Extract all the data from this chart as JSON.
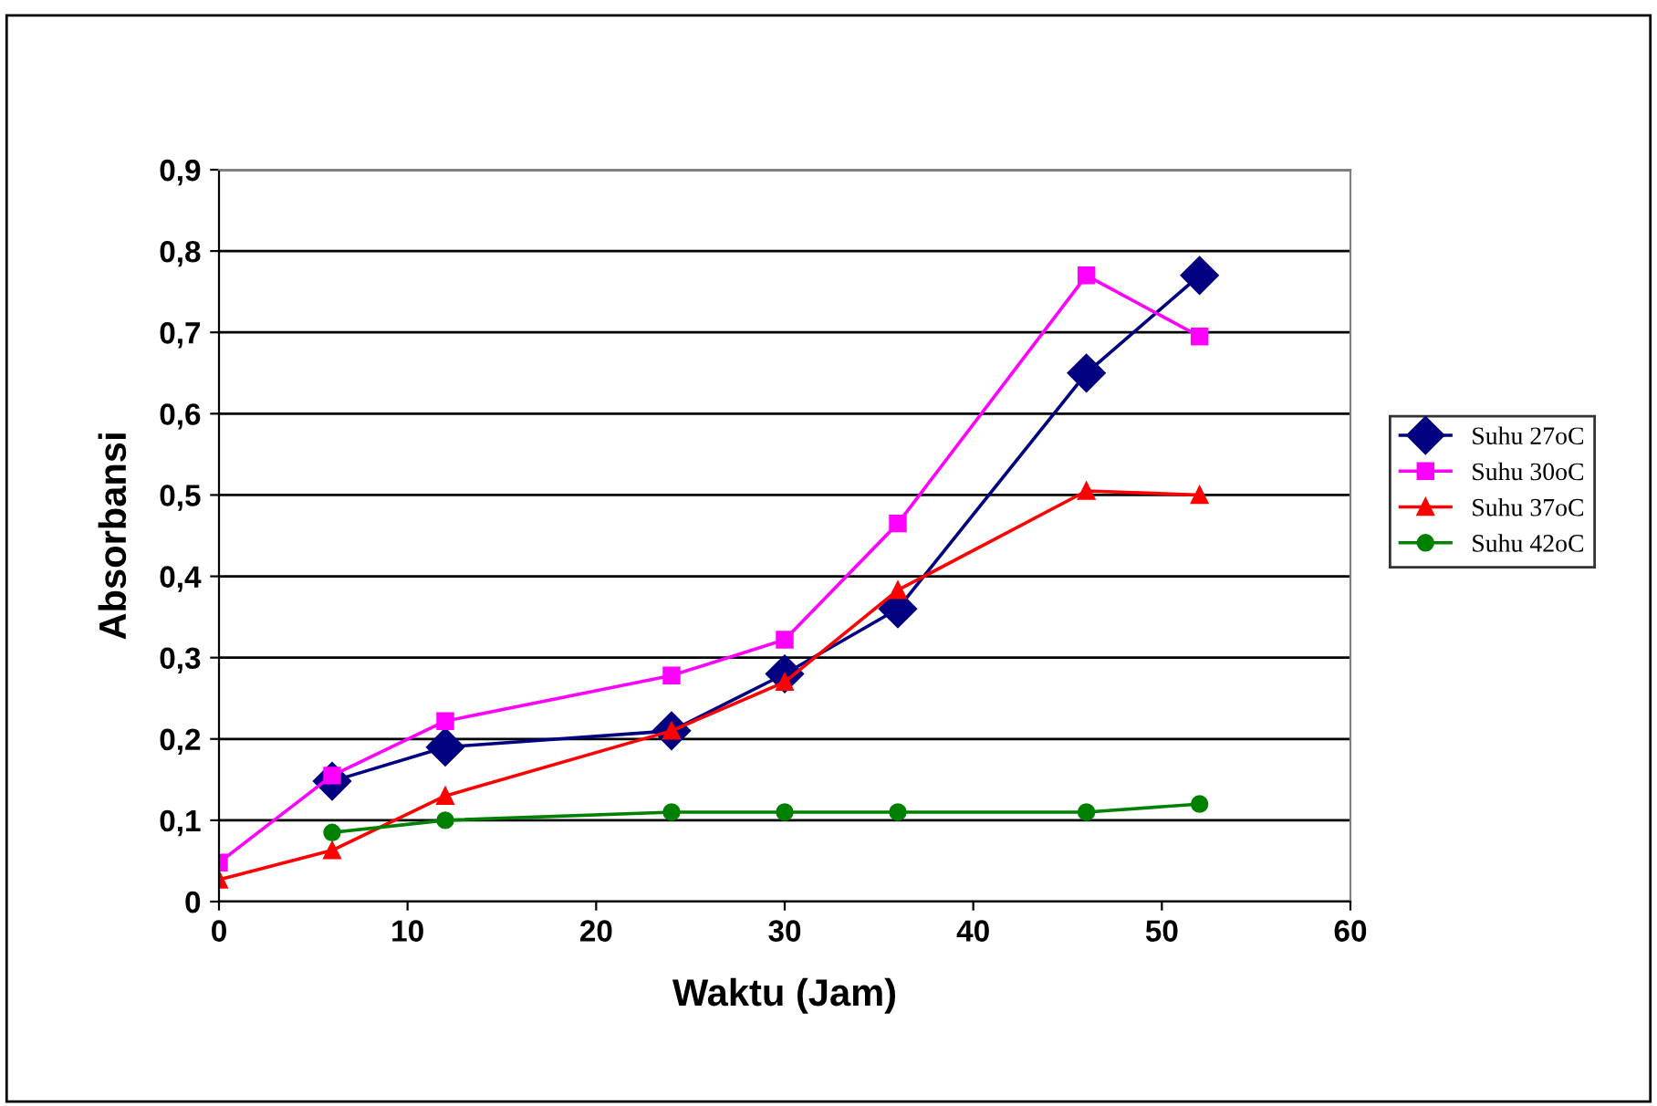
{
  "chart_data": {
    "type": "line",
    "xlabel": "Waktu (Jam)",
    "ylabel": "Absorbansi",
    "xlim": [
      0,
      60
    ],
    "xticks": [
      0,
      10,
      20,
      30,
      40,
      50,
      60
    ],
    "ylim": [
      0,
      0.9
    ],
    "yticks": [
      {
        "value": 0,
        "label": "0"
      },
      {
        "value": 0.1,
        "label": "0,1"
      },
      {
        "value": 0.2,
        "label": "0,2"
      },
      {
        "value": 0.3,
        "label": "0,3"
      },
      {
        "value": 0.4,
        "label": "0,4"
      },
      {
        "value": 0.5,
        "label": "0,5"
      },
      {
        "value": 0.6,
        "label": "0,6"
      },
      {
        "value": 0.7,
        "label": "0,7"
      },
      {
        "value": 0.8,
        "label": "0,8"
      },
      {
        "value": 0.9,
        "label": "0,9"
      }
    ],
    "grid": "y",
    "legend": "right",
    "line_style": "solid",
    "series": [
      {
        "name": "Suhu 27oC",
        "color": "#000080",
        "marker": "diamond",
        "x": [
          6,
          12,
          24,
          30,
          36,
          46,
          52
        ],
        "values": [
          0.148,
          0.19,
          0.21,
          0.28,
          0.36,
          0.65,
          0.77
        ]
      },
      {
        "name": "Suhu 30oC",
        "color": "#ff00ff",
        "marker": "square",
        "x": [
          0,
          6,
          12,
          24,
          30,
          36,
          46,
          52
        ],
        "values": [
          0.048,
          0.155,
          0.222,
          0.278,
          0.322,
          0.465,
          0.77,
          0.695
        ]
      },
      {
        "name": "Suhu 37oC",
        "color": "#ff0000",
        "marker": "triangle",
        "x": [
          0,
          6,
          12,
          24,
          30,
          36,
          46,
          52
        ],
        "values": [
          0.027,
          0.063,
          0.13,
          0.21,
          0.27,
          0.383,
          0.505,
          0.5
        ]
      },
      {
        "name": "Suhu 42oC",
        "color": "#008000",
        "marker": "circle",
        "x": [
          6,
          12,
          24,
          30,
          36,
          46,
          52
        ],
        "values": [
          0.085,
          0.1,
          0.11,
          0.11,
          0.11,
          0.11,
          0.12
        ]
      }
    ]
  }
}
